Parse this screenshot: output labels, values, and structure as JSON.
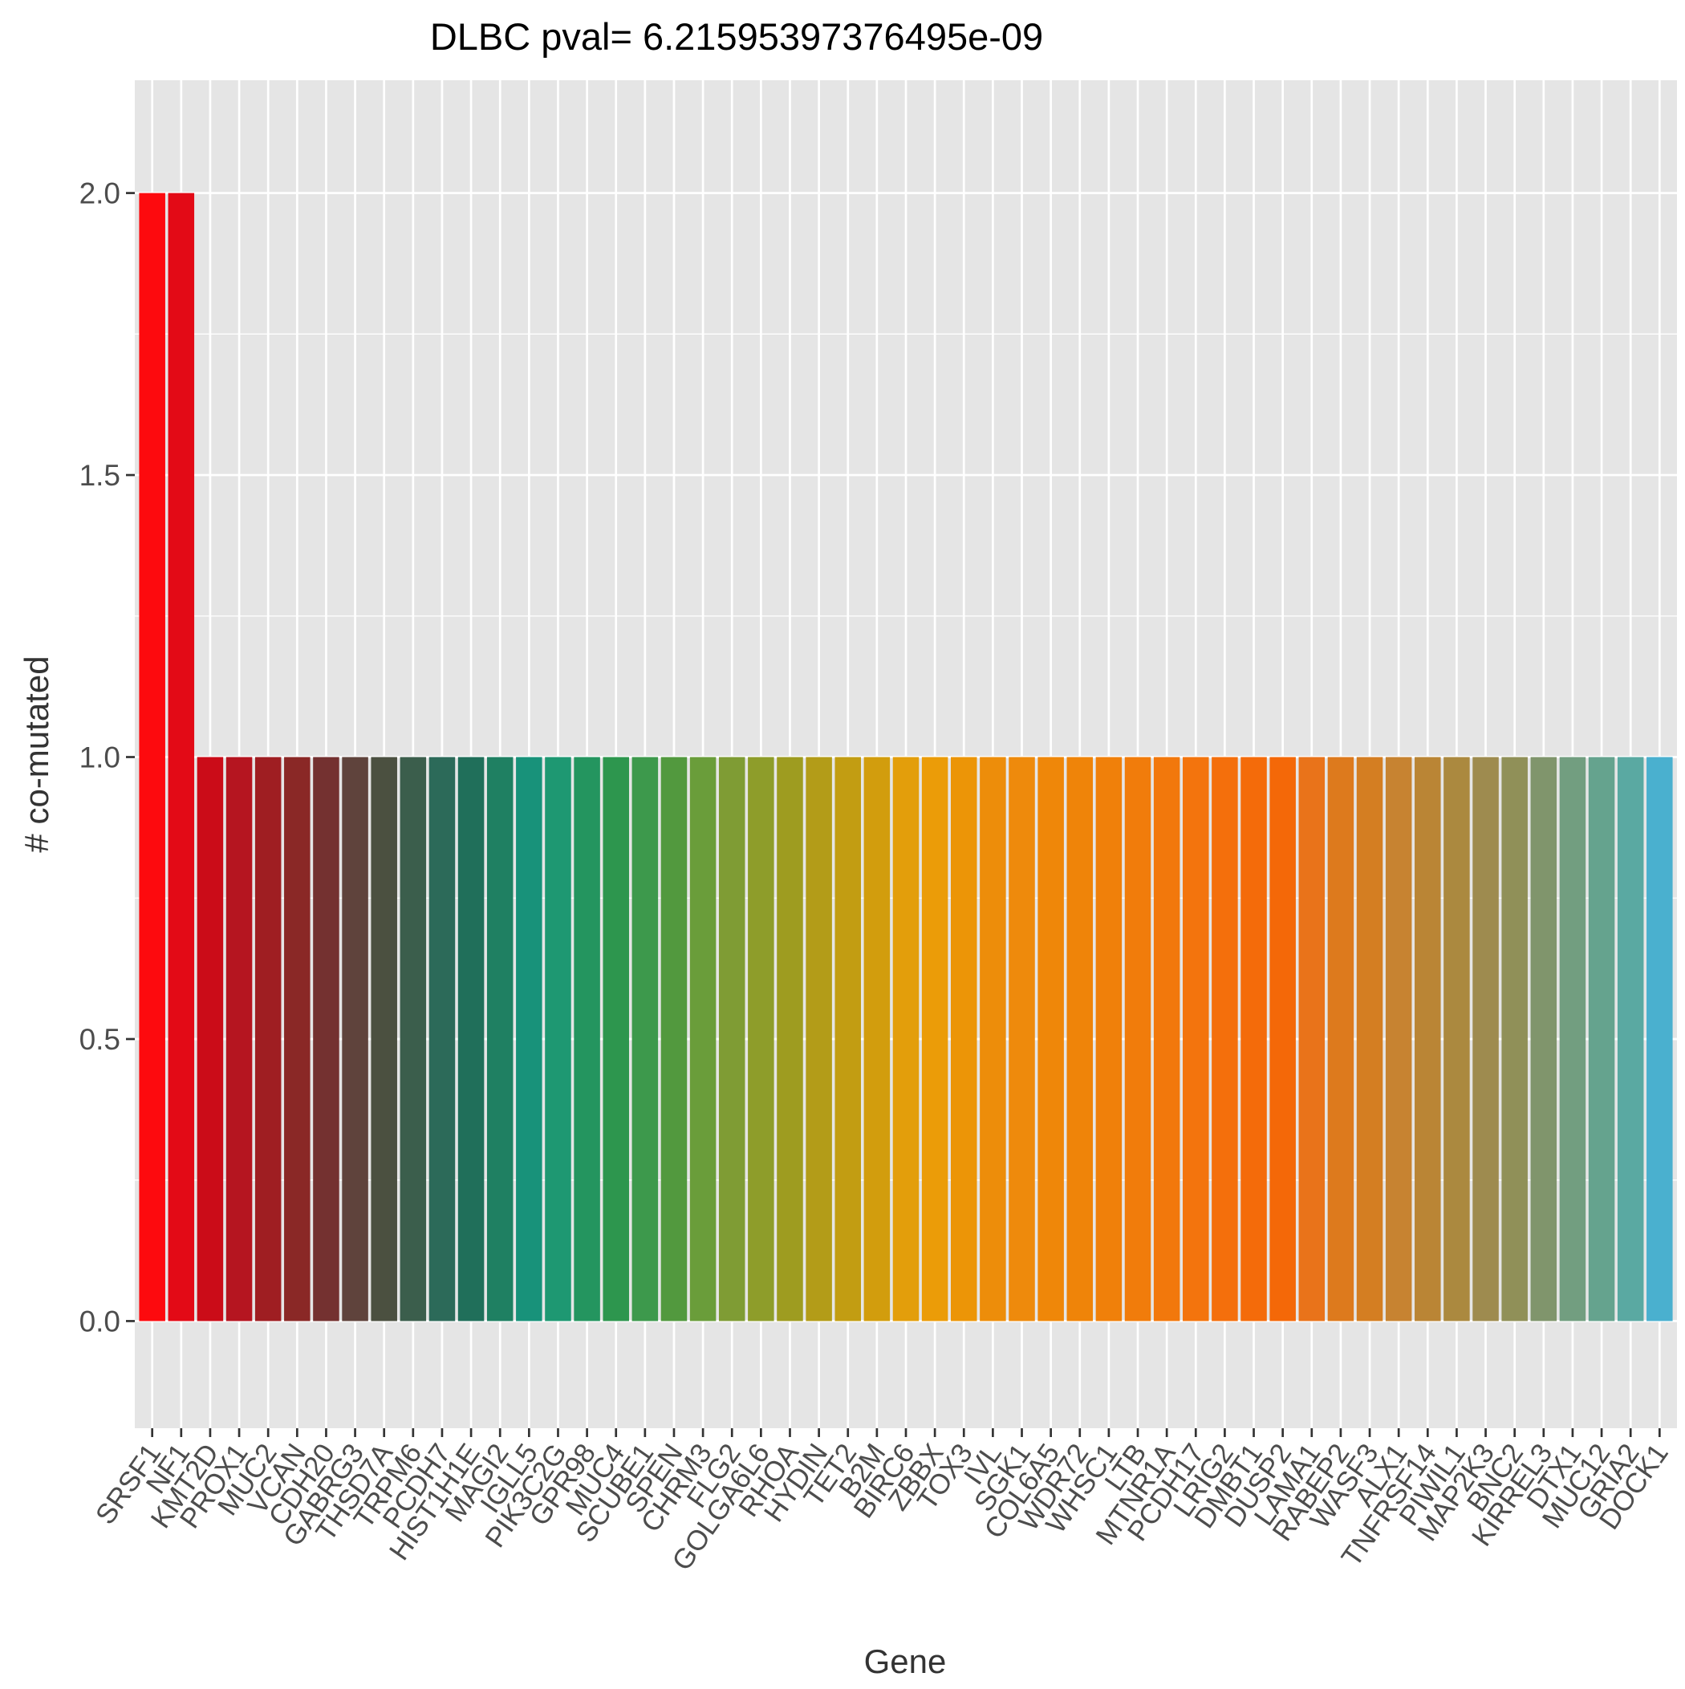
{
  "chart_data": {
    "type": "bar",
    "title": "DLBC pval= 6.21595397376495e-09",
    "xlabel": "Gene",
    "ylabel": "# co-mutated",
    "ylim": [
      -0.19,
      2.2
    ],
    "yticks": [
      "0.0",
      "0.5",
      "1.0",
      "1.5",
      "2.0"
    ],
    "ytick_values": [
      0,
      0.5,
      1.0,
      1.5,
      2.0
    ],
    "grid": true,
    "legend": "none",
    "panel_background": "#e5e5e5",
    "grid_color": "#ffffff",
    "categories": [
      "SRSF1",
      "NF1",
      "KMT2D",
      "PROX1",
      "MUC2",
      "VCAN",
      "CDH20",
      "GABRG3",
      "THSD7A",
      "TRPM6",
      "PCDH7",
      "HIST1H1E",
      "MAGI2",
      "IGLL5",
      "PIK3C2G",
      "GPR98",
      "MUC4",
      "SCUBE1",
      "SPEN",
      "CHRM3",
      "FLG2",
      "GOLGA6L6",
      "RHOA",
      "HYDIN",
      "TET2",
      "B2M",
      "BIRC6",
      "ZBBX",
      "TOX3",
      "IVL",
      "SGK1",
      "COL6A5",
      "WDR72",
      "WHSC1",
      "LTB",
      "MTNR1A",
      "PCDH17",
      "LRIG2",
      "DMBT1",
      "DUSP2",
      "LAMA1",
      "RABEP2",
      "WASF3",
      "ALX1",
      "TNFRSF14",
      "PIWIL1",
      "MAP2K3",
      "BNC2",
      "KIRREL3",
      "DTX1",
      "MUC12",
      "GRIA2",
      "DOCK1"
    ],
    "values": [
      2,
      2,
      1,
      1,
      1,
      1,
      1,
      1,
      1,
      1,
      1,
      1,
      1,
      1,
      1,
      1,
      1,
      1,
      1,
      1,
      1,
      1,
      1,
      1,
      1,
      1,
      1,
      1,
      1,
      1,
      1,
      1,
      1,
      1,
      1,
      1,
      1,
      1,
      1,
      1,
      1,
      1,
      1,
      1,
      1,
      1,
      1,
      1,
      1,
      1,
      1,
      1,
      1
    ],
    "colors": [
      "#fd0a0e",
      "#e30a16",
      "#cb0c18",
      "#b51520",
      "#9f1e22",
      "#8a2826",
      "#743130",
      "#5f433c",
      "#4b5040",
      "#3b5e4c",
      "#2c6a59",
      "#206f5a",
      "#1f8062",
      "#18927a",
      "#1e9872",
      "#24955f",
      "#2d964e",
      "#3d994c",
      "#52993e",
      "#6a9d3a",
      "#7f9c34",
      "#8e9d2a",
      "#9e9c20",
      "#b39c18",
      "#c29d12",
      "#d29d0d",
      "#e39e0b",
      "#eb9c08",
      "#ec9507",
      "#ed8d0a",
      "#ee8a0c",
      "#ef8709",
      "#ef8409",
      "#f0800a",
      "#f17c0b",
      "#f2780c",
      "#f3740d",
      "#f46f0c",
      "#f46b0a",
      "#f46808",
      "#e9731a",
      "#dd7a1d",
      "#d47e22",
      "#c78331",
      "#ba8535",
      "#ab893f",
      "#9e8b4f",
      "#909058",
      "#80956c",
      "#729e80",
      "#65a38e",
      "#5aa9a2",
      "#4ab0cf"
    ]
  }
}
